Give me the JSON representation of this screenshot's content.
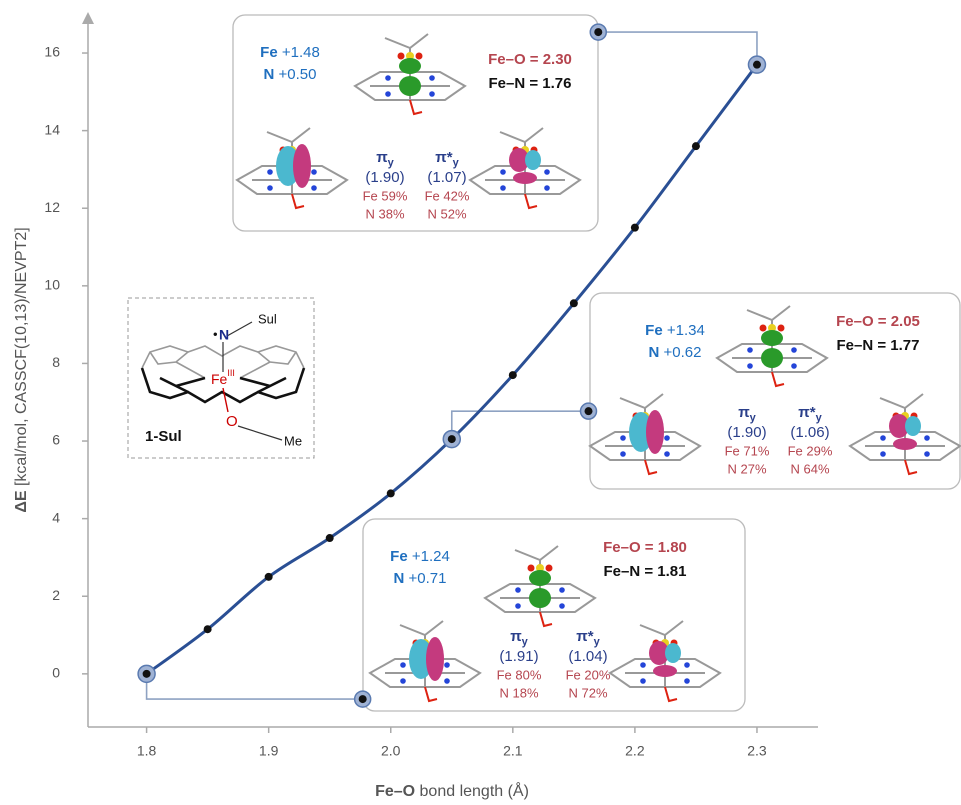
{
  "chart_data": {
    "type": "line",
    "x_label": {
      "bold": "Fe–O",
      "rest": " bond length (Å)"
    },
    "y_label": {
      "bold": "ΔE",
      "rest": " [kcal/mol, CASSCF(10,13)/NEVPT2]"
    },
    "x": [
      1.8,
      1.85,
      1.9,
      1.95,
      2.0,
      2.05,
      2.1,
      2.15,
      2.2,
      2.25,
      2.3
    ],
    "series": [
      {
        "color": "#2a4f94",
        "values": [
          0,
          1.15,
          2.5,
          3.5,
          4.65,
          6.05,
          7.7,
          9.55,
          11.5,
          13.6,
          15.7
        ]
      }
    ],
    "xlim": [
      1.752,
      2.35
    ],
    "ylim": [
      -1.37,
      16.98
    ],
    "xticks": [
      1.8,
      1.9,
      {
        "value": 2,
        "label": "2.0"
      },
      2.1,
      2.2,
      2.3
    ],
    "yticks": [
      0,
      2,
      4,
      6,
      8,
      10,
      12,
      14,
      16
    ],
    "callouts": [
      {
        "point": 10,
        "anchor": [
          2.17,
          16.54
        ]
      },
      {
        "point": 5,
        "anchor": [
          2.162,
          6.77
        ]
      },
      {
        "point": 0,
        "anchor": [
          1.977,
          -0.65
        ]
      }
    ]
  },
  "panels": [
    {
      "fe": {
        "element": "Fe",
        "value": "+1.48"
      },
      "n": {
        "element": "N",
        "value": "+0.50"
      },
      "fe_o": "Fe–O = 2.30",
      "fe_n": "Fe–N = 1.76",
      "orbitals": [
        {
          "symbol": "π",
          "sub": "y",
          "occ": "(1.90)",
          "fe": "Fe 59%",
          "n": "N 38%"
        },
        {
          "symbol": "π*",
          "sub": "y",
          "occ": "(1.07)",
          "fe": "Fe 42%",
          "n": "N 52%"
        }
      ]
    },
    {
      "fe": {
        "element": "Fe",
        "value": "+1.34"
      },
      "n": {
        "element": "N",
        "value": "+0.62"
      },
      "fe_o": "Fe–O = 2.05",
      "fe_n": "Fe–N = 1.77",
      "orbitals": [
        {
          "symbol": "π",
          "sub": "y",
          "occ": "(1.90)",
          "fe": "Fe 71%",
          "n": "N 27%"
        },
        {
          "symbol": "π*",
          "sub": "y",
          "occ": "(1.06)",
          "fe": "Fe 29%",
          "n": "N 64%"
        }
      ]
    },
    {
      "fe": {
        "element": "Fe",
        "value": "+1.24"
      },
      "n": {
        "element": "N",
        "value": "+0.71"
      },
      "fe_o": "Fe–O = 1.80",
      "fe_n": "Fe–N = 1.81",
      "orbitals": [
        {
          "symbol": "π",
          "sub": "y",
          "occ": "(1.91)",
          "fe": "Fe 80%",
          "n": "N 18%"
        },
        {
          "symbol": "π*",
          "sub": "y",
          "occ": "(1.04)",
          "fe": "Fe 20%",
          "n": "N 72%"
        }
      ]
    }
  ],
  "structure": {
    "sul": "Sul",
    "dot": "•",
    "n": "N",
    "fe": "Fe",
    "ox": "III",
    "o": "O",
    "me": "Me",
    "name": "1-Sul"
  }
}
